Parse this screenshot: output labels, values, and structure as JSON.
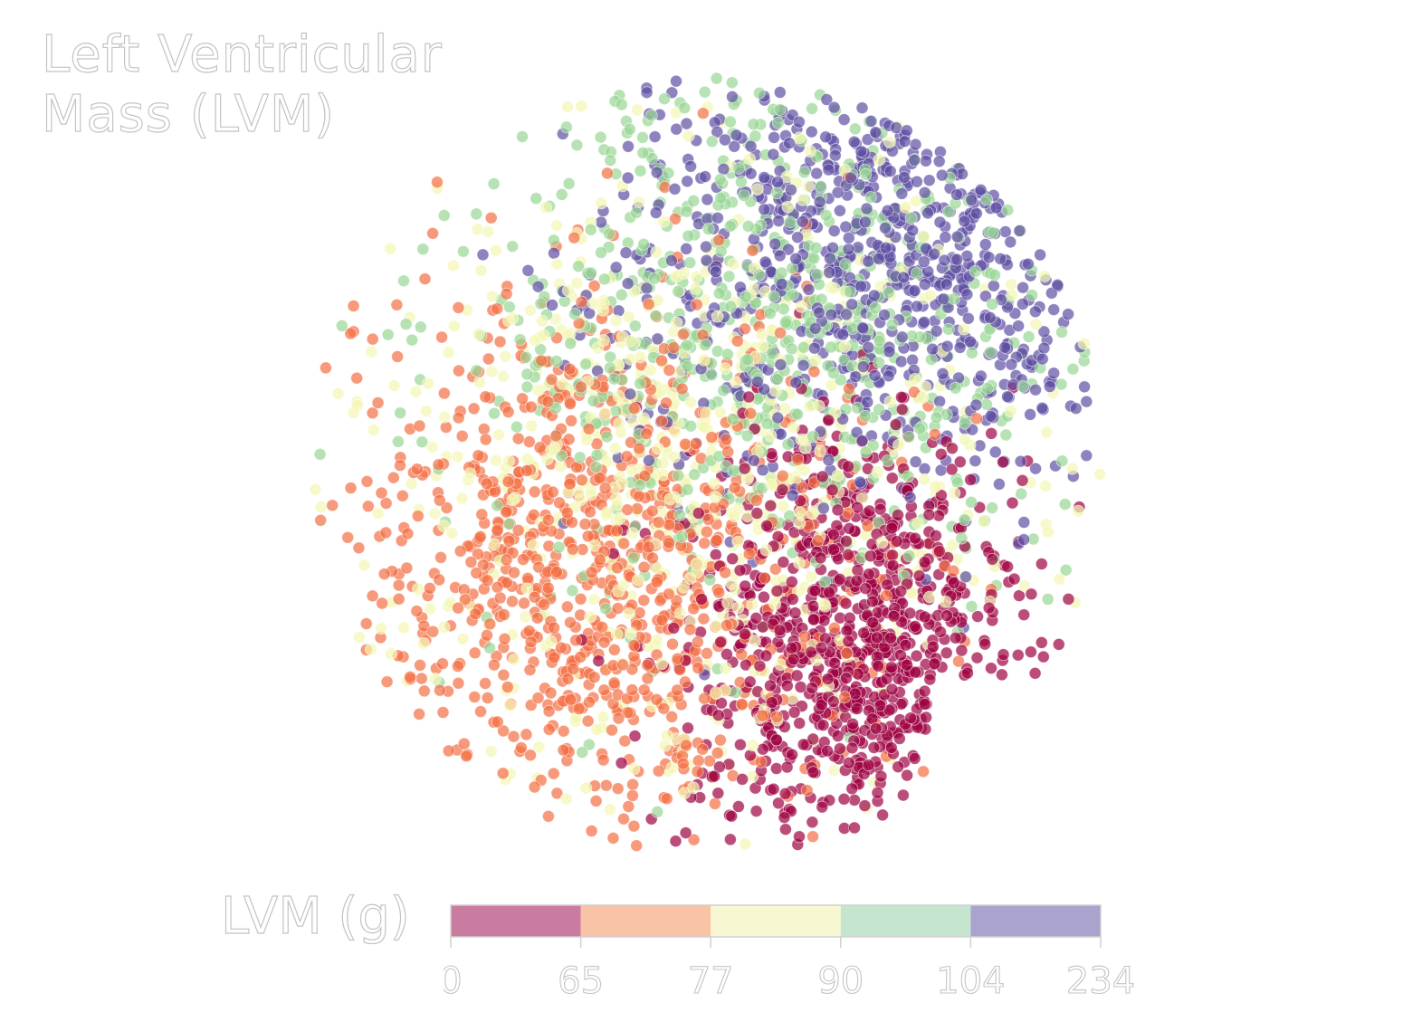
{
  "title": "Left Ventricular\nMass (LVM)",
  "chart_data": {
    "type": "scatter",
    "title": "Left Ventricular\nMass (LVM)",
    "description_of_points": "t-SNE style embedding scatter; ~4000 points colored by LVM bin",
    "xlabel": "",
    "ylabel": "",
    "axes_visible": false,
    "grid": false,
    "point_alpha": 0.7,
    "colorbar": {
      "label": "LVM (g)",
      "boundaries": [
        0,
        65,
        77,
        90,
        104,
        234
      ],
      "tick_labels": [
        "0",
        "65",
        "77",
        "90",
        "104",
        "234"
      ],
      "bin_colors": [
        "#9e0142",
        "#f46d43",
        "#f3f6b4",
        "#99d594",
        "#5e4fa2"
      ],
      "display_colors": [
        "#c97ba0",
        "#f9c3a5",
        "#f7f8d2",
        "#c6e5cf",
        "#aaa3cd"
      ]
    },
    "clusters": [
      {
        "bin": 0,
        "label": "0–65",
        "cx": 0.37,
        "cy": -0.45,
        "sd": [
          0.22,
          0.28
        ],
        "weight": 0.22
      },
      {
        "bin": 1,
        "label": "65–77",
        "cx": -0.25,
        "cy": -0.25,
        "sd": [
          0.33,
          0.35
        ],
        "weight": 0.22
      },
      {
        "bin": 2,
        "label": "77–90",
        "cx": -0.05,
        "cy": 0.05,
        "sd": [
          0.45,
          0.42
        ],
        "weight": 0.16
      },
      {
        "bin": 3,
        "label": "90–104",
        "cx": 0.15,
        "cy": 0.35,
        "sd": [
          0.4,
          0.35
        ],
        "weight": 0.17
      },
      {
        "bin": 4,
        "label": "104–234",
        "cx": 0.45,
        "cy": 0.55,
        "sd": [
          0.33,
          0.3
        ],
        "weight": 0.23
      }
    ],
    "n_points": 4000
  }
}
